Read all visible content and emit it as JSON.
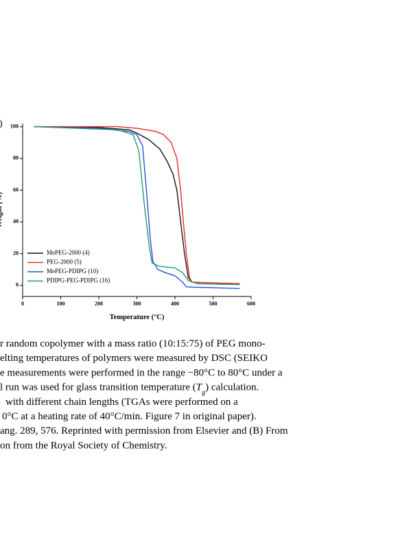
{
  "chart_data": {
    "type": "line",
    "panel_label": "(B)",
    "y_label": "Weight (%)",
    "x_label": "Temperature (°C)",
    "xlim": [
      0,
      600
    ],
    "ylim": [
      -7,
      102
    ],
    "xticks": [
      0,
      100,
      200,
      300,
      400,
      500,
      600
    ],
    "yticks": [
      0,
      20,
      40,
      60,
      80,
      100
    ],
    "legend": "lower left",
    "series": [
      {
        "name": "MePEG-2000 (4)",
        "color": "#111111",
        "x": [
          30,
          200,
          280,
          300,
          330,
          360,
          380,
          395,
          405,
          415,
          425,
          435,
          445,
          500,
          570
        ],
        "values": [
          100,
          99.5,
          98,
          96,
          92,
          86,
          78,
          70,
          60,
          40,
          20,
          5,
          2,
          1.5,
          1
        ]
      },
      {
        "name": "PEG-2000 (5)",
        "color": "#e8262b",
        "x": [
          30,
          250,
          300,
          350,
          370,
          390,
          405,
          415,
          422,
          430,
          438,
          445,
          500,
          570
        ],
        "values": [
          100,
          100,
          99,
          97,
          95,
          90,
          80,
          60,
          40,
          20,
          5,
          2,
          1.5,
          1
        ]
      },
      {
        "name": "MePEG-PDIPG (10)",
        "color": "#2a4fd8",
        "x": [
          30,
          200,
          280,
          300,
          315,
          325,
          335,
          342,
          355,
          375,
          400,
          420,
          430,
          500,
          570
        ],
        "values": [
          100,
          99,
          97,
          95,
          88,
          60,
          30,
          15,
          10,
          8,
          6,
          2,
          -1,
          -1.5,
          -2
        ]
      },
      {
        "name": "PDIPG-PEG-PDIPG (16)",
        "color": "#1e9a6e",
        "x": [
          30,
          250,
          290,
          305,
          320,
          332,
          340,
          360,
          400,
          420,
          435,
          460,
          570
        ],
        "values": [
          100,
          98,
          95,
          85,
          50,
          25,
          14,
          12,
          11,
          8,
          3,
          1,
          0.5
        ]
      }
    ]
  },
  "caption": {
    "lines": [
      [
        "r random copolymer with a mass ratio (10:15:75) of PEG mono-"
      ],
      [
        "elting temperatures of polymers were measured by DSC (SEIKO"
      ],
      [
        "e measurements were performed in the range −80°C to 80°C under a"
      ],
      [
        "l run was used for glass transition temperature (",
        "T",
        "g",
        ") calculation."
      ],
      [
        "with different chain lengths (TGAs were performed on a"
      ],
      [
        "0°C at a heating rate of 40°C/min. Figure 7 in original paper)."
      ],
      [
        "ang. 289, 576. Reprinted with permission from Elsevier and (B) From"
      ],
      [
        "on from the Royal Society of Chemistry."
      ]
    ]
  }
}
